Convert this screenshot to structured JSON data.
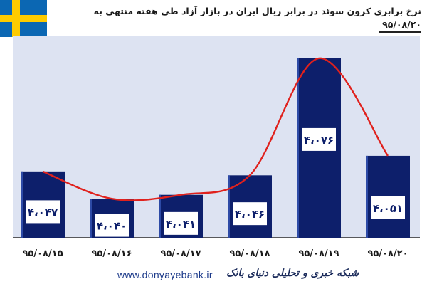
{
  "colors": {
    "plot_bg": "#dde3f2",
    "bar": "#0d1f6b",
    "bar_highlight": "#2d4aa6",
    "curve": "#e0211d",
    "flag_blue": "#0b67b3",
    "flag_yellow": "#fecb00"
  },
  "icons": {
    "flag": "sweden-flag-icon"
  },
  "header": {
    "title_line1": "نرخ برابری کرون سوئد در برابر ریال ایران در بازار آزاد طی هفته منتهی به",
    "title_line2": "۹۵/۰۸/۲۰"
  },
  "chart_data": {
    "type": "bar",
    "title": "نرخ برابری کرون سوئد در برابر ریال ایران در بازار آزاد طی هفته منتهی به ۹۵/۰۸/۲۰",
    "categories": [
      "۹۵/۰۸/۱۵",
      "۹۵/۰۸/۱۶",
      "۹۵/۰۸/۱۷",
      "۹۵/۰۸/۱۸",
      "۹۵/۰۸/۱۹",
      "۹۵/۰۸/۲۰"
    ],
    "values": [
      4047,
      4040,
      4041,
      4046,
      4076,
      4051
    ],
    "data_labels": [
      "۴،۰۴۷",
      "۴،۰۴۰",
      "۴،۰۴۱",
      "۴،۰۴۶",
      "۴،۰۷۶",
      "۴،۰۵۱"
    ],
    "ylim": [
      4030,
      4080
    ],
    "grid": false,
    "trend_line": true,
    "legend": "none"
  },
  "footer": {
    "url": "www.donyayebank.ir",
    "name": "شبکه خبری و تحلیلی دنیای بانک"
  }
}
